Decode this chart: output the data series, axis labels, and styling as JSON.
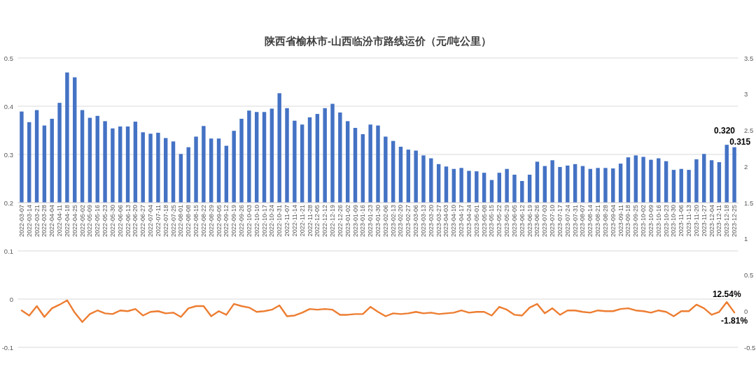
{
  "chart_data": [
    {
      "type": "bar",
      "title": "陕西省榆林市-山西临汾市路线运价（元/吨公里）",
      "categories": [
        "2022-03-07",
        "2022-03-14",
        "2022-03-21",
        "2022-03-28",
        "2022-04-04",
        "2022-04-11",
        "2022-04-18",
        "2022-04-25",
        "2022-05-02",
        "2022-05-09",
        "2022-05-16",
        "2022-05-23",
        "2022-05-30",
        "2022-06-06",
        "2022-06-13",
        "2022-06-20",
        "2022-06-27",
        "2022-07-04",
        "2022-07-11",
        "2022-07-18",
        "2022-07-25",
        "2022-08-01",
        "2022-08-08",
        "2022-08-15",
        "2022-08-22",
        "2022-08-29",
        "2022-09-05",
        "2022-09-12",
        "2022-09-19",
        "2022-09-26",
        "2022-10-03",
        "2022-10-10",
        "2022-10-17",
        "2022-10-24",
        "2022-10-31",
        "2022-11-07",
        "2022-11-14",
        "2022-11-21",
        "2022-11-28",
        "2022-12-05",
        "2022-12-12",
        "2022-12-19",
        "2022-12-26",
        "2023-01-02",
        "2023-01-09",
        "2023-01-16",
        "2023-01-23",
        "2023-01-30",
        "2023-02-06",
        "2023-02-13",
        "2023-02-20",
        "2023-02-27",
        "2023-03-06",
        "2023-03-13",
        "2023-03-20",
        "2023-03-27",
        "2023-04-03",
        "2023-04-10",
        "2023-04-17",
        "2023-04-24",
        "2023-05-01",
        "2023-05-08",
        "2023-05-15",
        "2023-05-22",
        "2023-05-29",
        "2023-06-05",
        "2023-06-12",
        "2023-06-19",
        "2023-06-26",
        "2023-07-03",
        "2023-07-10",
        "2023-07-17",
        "2023-07-24",
        "2023-07-31",
        "2023-08-07",
        "2023-08-14",
        "2023-08-21",
        "2023-08-28",
        "2023-09-04",
        "2023-09-11",
        "2023-09-18",
        "2023-09-25",
        "2023-10-02",
        "2023-10-09",
        "2023-10-16",
        "2023-10-23",
        "2023-10-30",
        "2023-11-06",
        "2023-11-13",
        "2023-11-20",
        "2023-11-27",
        "2023-12-04",
        "2023-12-11",
        "2023-12-18",
        "2023-12-25"
      ],
      "values": [
        0.389,
        0.367,
        0.392,
        0.36,
        0.374,
        0.407,
        0.47,
        0.46,
        0.392,
        0.376,
        0.38,
        0.369,
        0.354,
        0.358,
        0.358,
        0.368,
        0.346,
        0.343,
        0.345,
        0.334,
        0.327,
        0.301,
        0.315,
        0.337,
        0.359,
        0.333,
        0.333,
        0.318,
        0.349,
        0.374,
        0.391,
        0.388,
        0.388,
        0.395,
        0.427,
        0.396,
        0.37,
        0.362,
        0.377,
        0.384,
        0.396,
        0.405,
        0.387,
        0.369,
        0.355,
        0.342,
        0.362,
        0.36,
        0.337,
        0.328,
        0.316,
        0.31,
        0.308,
        0.298,
        0.292,
        0.28,
        0.275,
        0.27,
        0.272,
        0.266,
        0.265,
        0.262,
        0.247,
        0.262,
        0.27,
        0.258,
        0.245,
        0.258,
        0.285,
        0.276,
        0.288,
        0.274,
        0.277,
        0.28,
        0.276,
        0.27,
        0.272,
        0.272,
        0.271,
        0.281,
        0.294,
        0.298,
        0.295,
        0.289,
        0.292,
        0.286,
        0.268,
        0.27,
        0.268,
        0.29,
        0.301,
        0.288,
        0.284,
        0.32,
        0.315
      ],
      "color": "#4472c4",
      "value_labels": [
        null,
        null,
        null,
        null,
        null,
        null,
        null,
        null,
        null,
        null,
        null,
        null,
        null,
        null,
        null,
        null,
        null,
        null,
        null,
        null,
        null,
        null,
        null,
        null,
        null,
        null,
        null,
        null,
        null,
        null,
        null,
        null,
        null,
        null,
        null,
        null,
        null,
        null,
        null,
        null,
        null,
        null,
        null,
        null,
        null,
        null,
        null,
        null,
        null,
        null,
        null,
        null,
        null,
        null,
        null,
        null,
        null,
        null,
        null,
        null,
        null,
        null,
        null,
        null,
        null,
        null,
        null,
        null,
        null,
        null,
        null,
        null,
        null,
        null,
        null,
        null,
        null,
        null,
        null,
        null,
        null,
        null,
        null,
        null,
        null,
        null,
        null,
        null,
        null,
        null,
        null,
        null,
        null,
        "0.320",
        "0.315"
      ],
      "ylim": [
        0.2,
        0.5
      ],
      "yticks": [
        0.2,
        0.3,
        0.4,
        0.5
      ],
      "y2lim": [
        1.5,
        3.5
      ],
      "y2ticks": [
        1.5,
        2,
        2.5,
        3,
        3.5
      ],
      "grid": "y"
    },
    {
      "type": "line",
      "categories": [
        null,
        null,
        null,
        null,
        null,
        null,
        null,
        null,
        null,
        null,
        null,
        null,
        null,
        null,
        null,
        null,
        null,
        null,
        null,
        null,
        null,
        null,
        null,
        null,
        null,
        null,
        null,
        null,
        null,
        null,
        null,
        null,
        null,
        null,
        null,
        null,
        null,
        null,
        null,
        null,
        null,
        null,
        null,
        null,
        null,
        null,
        null,
        null,
        null,
        null,
        null,
        null,
        null,
        null,
        null,
        null,
        null,
        null,
        null,
        null,
        null,
        null,
        null,
        null,
        null,
        null,
        null,
        null,
        null,
        null,
        null,
        null,
        null,
        null,
        null,
        null,
        null,
        null,
        null,
        null,
        null,
        null,
        null,
        null,
        null,
        null,
        null,
        null,
        null,
        null,
        null,
        null,
        null,
        null,
        null
      ],
      "series": [
        {
          "color": "#ed7d31",
          "axis": "y2",
          "values": [
            0.01,
            -0.06,
            0.07,
            -0.08,
            0.04,
            0.09,
            0.15,
            -0.02,
            -0.15,
            -0.04,
            0.01,
            -0.03,
            -0.04,
            0.01,
            0,
            0.03,
            -0.06,
            -0.01,
            0,
            -0.03,
            -0.02,
            -0.08,
            0.04,
            0.07,
            0.07,
            -0.07,
            0,
            -0.05,
            0.1,
            0.07,
            0.05,
            -0.01,
            0,
            0.02,
            0.08,
            -0.07,
            -0.06,
            -0.02,
            0.03,
            0.02,
            0.03,
            0.02,
            -0.05,
            -0.05,
            -0.04,
            -0.04,
            0.06,
            -0.01,
            -0.07,
            -0.03,
            -0.04,
            -0.03,
            -0.01,
            -0.03,
            -0.02,
            -0.04,
            -0.03,
            -0.02,
            0.01,
            -0.02,
            -0.01,
            -0.01,
            -0.06,
            0.06,
            0.02,
            -0.05,
            -0.06,
            0.05,
            0.1,
            -0.03,
            0.04,
            -0.05,
            0.01,
            0.01,
            -0.01,
            -0.02,
            0.01,
            0,
            0,
            0.03,
            0.04,
            0.01,
            0,
            -0.02,
            0.01,
            -0.01,
            -0.07,
            0,
            0,
            0.09,
            0.04,
            -0.05,
            -0.01,
            0.1254,
            -0.0181
          ],
          "value_labels": [
            null,
            null,
            null,
            null,
            null,
            null,
            null,
            null,
            null,
            null,
            null,
            null,
            null,
            null,
            null,
            null,
            null,
            null,
            null,
            null,
            null,
            null,
            null,
            null,
            null,
            null,
            null,
            null,
            null,
            null,
            null,
            null,
            null,
            null,
            null,
            null,
            null,
            null,
            null,
            null,
            null,
            null,
            null,
            null,
            null,
            null,
            null,
            null,
            null,
            null,
            null,
            null,
            null,
            null,
            null,
            null,
            null,
            null,
            null,
            null,
            null,
            null,
            null,
            null,
            null,
            null,
            null,
            null,
            null,
            null,
            null,
            null,
            null,
            null,
            null,
            null,
            null,
            null,
            null,
            null,
            null,
            null,
            null,
            null,
            null,
            null,
            null,
            null,
            null,
            null,
            null,
            null,
            null,
            "12.54%",
            "-1.81%"
          ]
        }
      ],
      "ylim": [
        -0.1,
        0.2
      ],
      "yticks": [
        -0.1,
        0,
        0.1
      ],
      "y2lim": [
        -0.5,
        1.5
      ],
      "y2ticks": [
        -0.5,
        0,
        0.5,
        1
      ],
      "grid": "y"
    }
  ]
}
